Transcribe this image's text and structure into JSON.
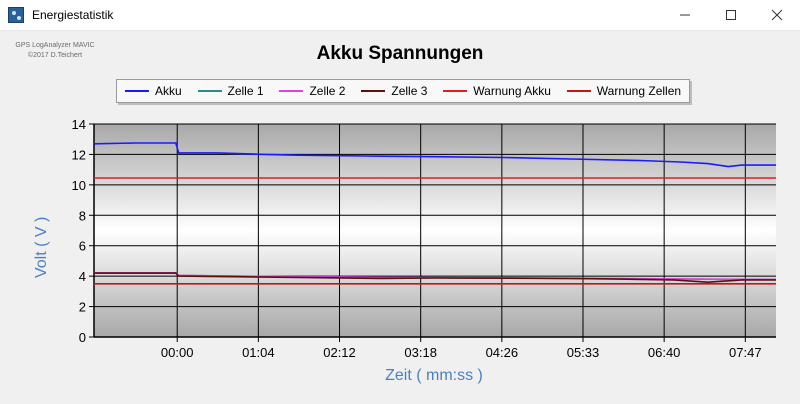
{
  "window": {
    "title": "Energiestatistik",
    "icon": "app-icon",
    "controls": [
      "minimize-icon",
      "maximize-icon",
      "close-icon"
    ]
  },
  "credits": {
    "line1": "GPS LogAnalyzer MAVIC",
    "line2": "©2017 D.Teichert"
  },
  "chart_data": {
    "type": "line",
    "title": "Akku Spannungen",
    "xlabel": "Zeit ( mm:ss )",
    "ylabel": "Volt ( V )",
    "ylim": [
      0,
      14
    ],
    "yticks": [
      0,
      2,
      4,
      6,
      8,
      10,
      12,
      14
    ],
    "xticks": [
      "00:00",
      "01:04",
      "02:12",
      "03:18",
      "04:26",
      "05:33",
      "06:40",
      "07:47"
    ],
    "grid": true,
    "legend_placement": "top",
    "series": [
      {
        "name": "Akku",
        "color": "#1a1aff",
        "points": [
          [
            0.0,
            12.7
          ],
          [
            0.06,
            12.75
          ],
          [
            0.12,
            12.75
          ],
          [
            0.124,
            12.1
          ],
          [
            0.18,
            12.1
          ],
          [
            0.25,
            12.0
          ],
          [
            0.3,
            11.95
          ],
          [
            0.4,
            11.9
          ],
          [
            0.5,
            11.85
          ],
          [
            0.6,
            11.8
          ],
          [
            0.7,
            11.7
          ],
          [
            0.8,
            11.6
          ],
          [
            0.86,
            11.5
          ],
          [
            0.9,
            11.4
          ],
          [
            0.93,
            11.2
          ],
          [
            0.95,
            11.3
          ],
          [
            1.0,
            11.3
          ]
        ]
      },
      {
        "name": "Zelle 1",
        "color": "#2e8b8b",
        "points": [
          [
            0.0,
            4.2
          ],
          [
            0.12,
            4.2
          ],
          [
            0.124,
            4.05
          ],
          [
            0.3,
            3.95
          ],
          [
            0.5,
            3.9
          ],
          [
            0.7,
            3.85
          ],
          [
            0.9,
            3.8
          ],
          [
            1.0,
            3.78
          ]
        ]
      },
      {
        "name": "Zelle 2",
        "color": "#e040e0",
        "points": [
          [
            0.0,
            4.22
          ],
          [
            0.12,
            4.22
          ],
          [
            0.124,
            4.05
          ],
          [
            0.3,
            3.96
          ],
          [
            0.5,
            3.9
          ],
          [
            0.7,
            3.86
          ],
          [
            0.9,
            3.8
          ],
          [
            1.0,
            3.78
          ]
        ]
      },
      {
        "name": "Zelle 3",
        "color": "#5a1010",
        "points": [
          [
            0.0,
            4.2
          ],
          [
            0.12,
            4.2
          ],
          [
            0.124,
            4.0
          ],
          [
            0.3,
            3.92
          ],
          [
            0.42,
            3.85
          ],
          [
            0.5,
            3.88
          ],
          [
            0.7,
            3.85
          ],
          [
            0.85,
            3.75
          ],
          [
            0.9,
            3.6
          ],
          [
            0.95,
            3.75
          ],
          [
            1.0,
            3.75
          ]
        ]
      },
      {
        "name": "Warnung Akku",
        "color": "#e02020",
        "points": [
          [
            0.0,
            10.45
          ],
          [
            1.0,
            10.45
          ]
        ]
      },
      {
        "name": "Warnung Zellen",
        "color": "#c01818",
        "points": [
          [
            0.0,
            3.5
          ],
          [
            1.0,
            3.5
          ]
        ]
      }
    ]
  }
}
